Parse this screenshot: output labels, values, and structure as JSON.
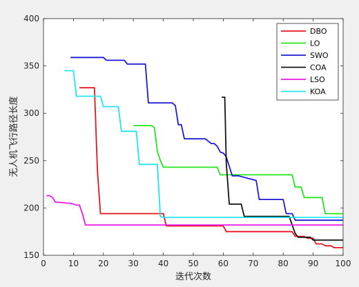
{
  "chart_data": {
    "type": "line",
    "xlabel": "迭代次数",
    "ylabel": "无人机飞行路径长度",
    "xlim": [
      0,
      100
    ],
    "ylim": [
      150,
      400
    ],
    "xticks": [
      0,
      10,
      20,
      30,
      40,
      50,
      60,
      70,
      80,
      90,
      100
    ],
    "yticks": [
      150,
      200,
      250,
      300,
      350,
      400
    ],
    "grid": false,
    "legend_position": "top-right",
    "series": [
      {
        "name": "DBO",
        "color": "#e8141b",
        "x": [
          12,
          17,
          18,
          19,
          40,
          41,
          60,
          61,
          83,
          84,
          87,
          88,
          90,
          91,
          93,
          94,
          96,
          97,
          100
        ],
        "y": [
          327,
          327,
          240,
          194,
          194,
          181,
          181,
          175,
          175,
          170,
          170,
          168,
          168,
          162,
          162,
          160,
          160,
          158,
          158
        ]
      },
      {
        "name": "LO",
        "color": "#22e61e",
        "x": [
          30,
          36,
          37,
          38,
          39,
          40,
          58,
          59,
          63,
          64,
          83,
          84,
          86,
          87,
          93,
          94,
          100
        ],
        "y": [
          287,
          287,
          285,
          260,
          250,
          243,
          243,
          235,
          235,
          235,
          235,
          222,
          222,
          211,
          211,
          194,
          194
        ]
      },
      {
        "name": "SWO",
        "color": "#1a1ad6",
        "x": [
          9,
          20,
          21,
          27,
          28,
          34,
          35,
          43,
          44,
          45,
          46,
          47,
          52,
          53,
          54,
          56,
          57,
          58,
          59,
          60,
          61,
          62,
          63,
          64,
          65,
          71,
          72,
          80,
          81,
          83,
          84,
          100
        ],
        "y": [
          359,
          359,
          356,
          356,
          352,
          352,
          311,
          311,
          308,
          288,
          288,
          273,
          273,
          273,
          273,
          268,
          268,
          265,
          259,
          258,
          254,
          244,
          234,
          234,
          234,
          229,
          209,
          209,
          194,
          194,
          187,
          187
        ]
      },
      {
        "name": "COA",
        "color": "#111111",
        "x": [
          59.5,
          60.5,
          61,
          62,
          66,
          67,
          68,
          69,
          82,
          83,
          84,
          85,
          89,
          90,
          100
        ],
        "y": [
          317,
          317,
          248,
          204,
          204,
          191,
          191,
          191,
          191,
          182,
          173,
          169,
          169,
          166,
          166
        ]
      },
      {
        "name": "LSO",
        "color": "#ec18ec",
        "x": [
          1,
          2,
          3,
          4,
          5,
          8,
          9,
          11,
          12,
          13,
          14,
          100
        ],
        "y": [
          213,
          213,
          211,
          206,
          206,
          205,
          205,
          203,
          203,
          194,
          182,
          182
        ]
      },
      {
        "name": "KOA",
        "color": "#1ee6ec",
        "x": [
          7,
          10,
          11,
          19,
          20,
          25,
          26,
          31,
          32,
          38,
          39,
          40,
          41,
          100
        ],
        "y": [
          345,
          345,
          318,
          318,
          307,
          307,
          281,
          281,
          246,
          246,
          191,
          190,
          190,
          190
        ]
      }
    ]
  }
}
